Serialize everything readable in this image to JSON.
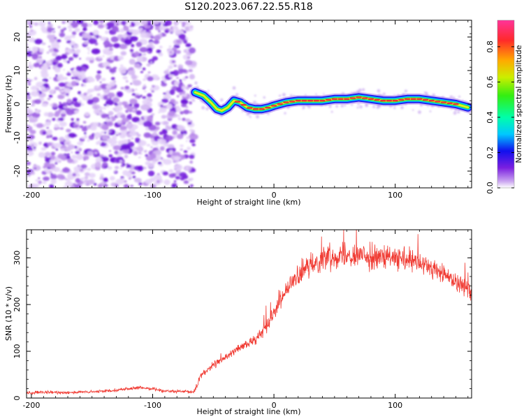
{
  "title": "S120.2023.067.22.55.R18",
  "colors": {
    "snr_line": "#f03a32",
    "noise_purple": "#8a2be2",
    "track_core": "#e8323c",
    "track_mid": "#33dd33",
    "track_edge": "#2222ee"
  },
  "chart_data": [
    {
      "type": "heatmap",
      "title": "S120.2023.067.22.55.R18",
      "xlabel": "Height of straight line (km)",
      "ylabel": "Frequency (Hz)",
      "xlim": [
        -204,
        163
      ],
      "ylim": [
        -25,
        25
      ],
      "xticks": [
        -200,
        -100,
        0,
        100
      ],
      "xtick_labels": [
        "-200",
        "-100",
        "0",
        "100"
      ],
      "yticks": [
        -20,
        -10,
        0,
        10,
        20
      ],
      "ytick_labels": [
        "-20",
        "-10",
        "0",
        "10",
        "20"
      ],
      "colorbar": {
        "label": "Normalized spectral amplitude",
        "range": [
          0,
          0.95
        ],
        "ticks": [
          0.0,
          0.2,
          0.4,
          0.6,
          0.8
        ],
        "tick_labels": [
          "0.0",
          "0.2",
          "0.4",
          "0.6",
          "0.8"
        ],
        "colormap": "rainbow"
      },
      "noise_region_x": [
        -204,
        -66
      ],
      "track": {
        "x": [
          -65,
          -58,
          -52,
          -47,
          -43,
          -38,
          -33,
          -28,
          -22,
          -16,
          -10,
          -4,
          0,
          10,
          20,
          30,
          40,
          50,
          60,
          70,
          80,
          90,
          100,
          110,
          120,
          130,
          140,
          150,
          160
        ],
        "y": [
          3.5,
          2.5,
          0.5,
          -1.5,
          -2.0,
          -1.0,
          1.0,
          0.5,
          -1.0,
          -1.5,
          -1.5,
          -1.0,
          -0.5,
          0.5,
          1.0,
          1.0,
          1.0,
          1.5,
          1.5,
          2.0,
          1.5,
          1.0,
          1.0,
          1.5,
          1.5,
          1.0,
          0.5,
          0.0,
          -1.0
        ]
      },
      "grid": false
    },
    {
      "type": "line",
      "xlabel": "Height of straight line (km)",
      "ylabel": "SNR (10 * v/v)",
      "xlim": [
        -204,
        163
      ],
      "ylim": [
        0,
        360
      ],
      "xticks": [
        -200,
        -100,
        0,
        100
      ],
      "xtick_labels": [
        "-200",
        "-100",
        "0",
        "100"
      ],
      "yticks": [
        0,
        100,
        200,
        300
      ],
      "ytick_labels": [
        "0",
        "100",
        "200",
        "300"
      ],
      "series": [
        {
          "x": [
            -204,
            -190,
            -170,
            -150,
            -130,
            -120,
            -110,
            -100,
            -90,
            -80,
            -70,
            -66,
            -60,
            -55,
            -50,
            -45,
            -40,
            -35,
            -30,
            -25,
            -20,
            -15,
            -10,
            -5,
            0,
            5,
            10,
            15,
            20,
            25,
            30,
            35,
            40,
            45,
            50,
            60,
            70,
            80,
            90,
            100,
            110,
            120,
            130,
            140,
            150,
            160,
            163
          ],
          "y": [
            11,
            12,
            12,
            13,
            17,
            20,
            22,
            20,
            15,
            14,
            13,
            13,
            50,
            60,
            70,
            78,
            88,
            95,
            105,
            112,
            118,
            126,
            140,
            160,
            185,
            210,
            230,
            245,
            260,
            272,
            283,
            292,
            298,
            302,
            305,
            308,
            305,
            302,
            300,
            298,
            293,
            288,
            278,
            265,
            250,
            235,
            222
          ]
        }
      ],
      "grid": false
    }
  ]
}
